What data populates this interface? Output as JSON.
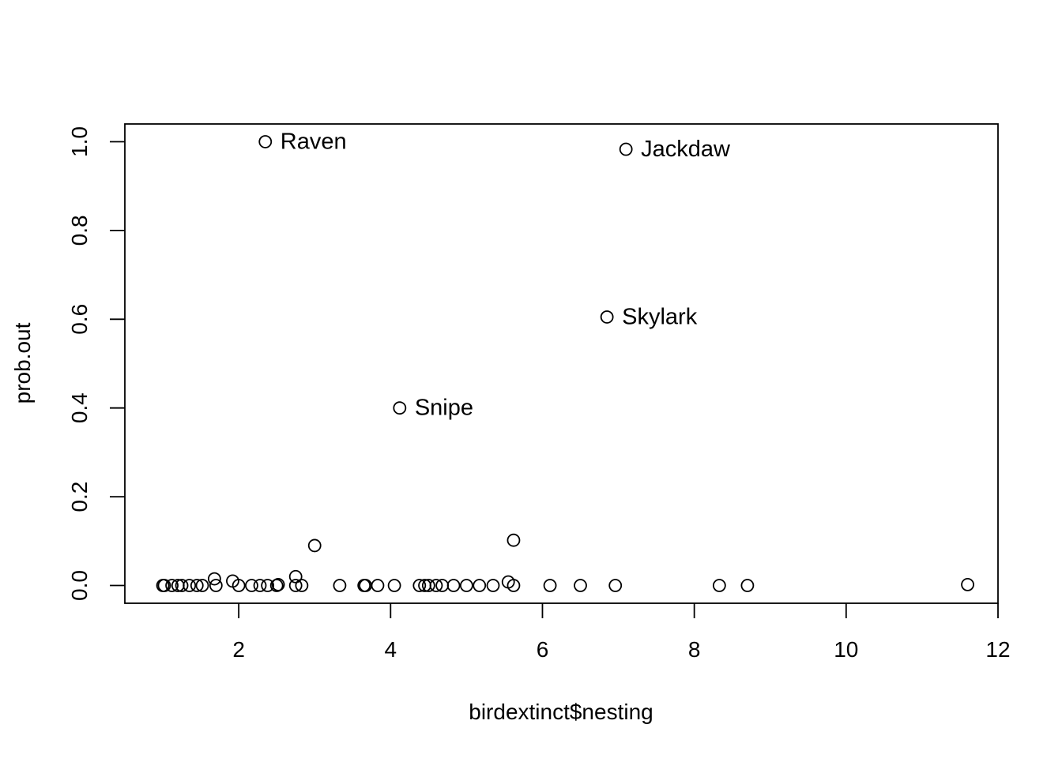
{
  "chart_data": {
    "type": "scatter",
    "title": "",
    "xlabel": "birdextinct$nesting",
    "ylabel": "prob.out",
    "xlim": [
      0.5,
      12.0
    ],
    "ylim": [
      -0.04,
      1.04
    ],
    "x_ticks": [
      2,
      4,
      6,
      8,
      10,
      12
    ],
    "x_tick_labels": [
      "2",
      "4",
      "6",
      "8",
      "10",
      "12"
    ],
    "y_ticks": [
      0.0,
      0.2,
      0.4,
      0.6,
      0.8,
      1.0
    ],
    "y_tick_labels": [
      "0.0",
      "0.2",
      "0.4",
      "0.6",
      "0.8",
      "1.0"
    ],
    "grid": false,
    "legend": "none",
    "marker": "open-circle",
    "color": "#000000",
    "labeled_points": [
      {
        "label": "Raven",
        "x": 2.35,
        "y": 1.0
      },
      {
        "label": "Jackdaw",
        "x": 7.1,
        "y": 0.983
      },
      {
        "label": "Skylark",
        "x": 6.85,
        "y": 0.605
      },
      {
        "label": "Snipe",
        "x": 4.12,
        "y": 0.4
      }
    ],
    "points": [
      {
        "x": 1.0,
        "y": 0.0
      },
      {
        "x": 1.02,
        "y": 0.0
      },
      {
        "x": 1.12,
        "y": 0.0
      },
      {
        "x": 1.2,
        "y": 0.0
      },
      {
        "x": 1.25,
        "y": 0.0
      },
      {
        "x": 1.35,
        "y": 0.0
      },
      {
        "x": 1.45,
        "y": 0.0
      },
      {
        "x": 1.52,
        "y": 0.0
      },
      {
        "x": 1.68,
        "y": 0.015
      },
      {
        "x": 1.7,
        "y": 0.0
      },
      {
        "x": 1.92,
        "y": 0.01
      },
      {
        "x": 2.0,
        "y": 0.0
      },
      {
        "x": 2.17,
        "y": 0.0
      },
      {
        "x": 2.28,
        "y": 0.0
      },
      {
        "x": 2.38,
        "y": 0.0
      },
      {
        "x": 2.5,
        "y": 0.0
      },
      {
        "x": 2.52,
        "y": 0.002
      },
      {
        "x": 2.75,
        "y": 0.02
      },
      {
        "x": 2.75,
        "y": 0.0
      },
      {
        "x": 2.83,
        "y": 0.0
      },
      {
        "x": 3.0,
        "y": 0.09
      },
      {
        "x": 3.33,
        "y": 0.0
      },
      {
        "x": 3.65,
        "y": 0.0
      },
      {
        "x": 3.67,
        "y": 0.0
      },
      {
        "x": 3.83,
        "y": 0.0
      },
      {
        "x": 4.05,
        "y": 0.0
      },
      {
        "x": 4.38,
        "y": 0.0
      },
      {
        "x": 4.45,
        "y": 0.0
      },
      {
        "x": 4.5,
        "y": 0.0
      },
      {
        "x": 4.6,
        "y": 0.0
      },
      {
        "x": 4.68,
        "y": 0.0
      },
      {
        "x": 4.83,
        "y": 0.0
      },
      {
        "x": 5.0,
        "y": 0.0
      },
      {
        "x": 5.17,
        "y": 0.0
      },
      {
        "x": 5.35,
        "y": 0.0
      },
      {
        "x": 5.55,
        "y": 0.008
      },
      {
        "x": 5.62,
        "y": 0.0
      },
      {
        "x": 5.62,
        "y": 0.102
      },
      {
        "x": 6.1,
        "y": 0.0
      },
      {
        "x": 6.5,
        "y": 0.0
      },
      {
        "x": 6.96,
        "y": 0.0
      },
      {
        "x": 8.33,
        "y": 0.0
      },
      {
        "x": 8.7,
        "y": 0.0
      },
      {
        "x": 11.6,
        "y": 0.002
      }
    ]
  }
}
